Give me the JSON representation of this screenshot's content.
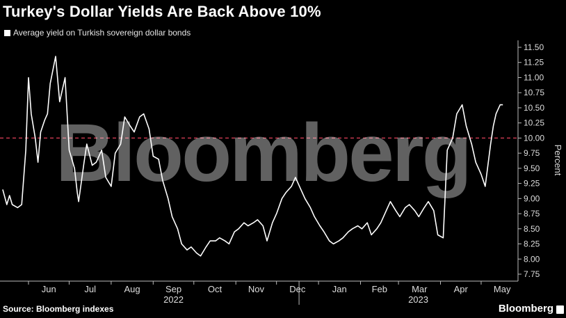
{
  "title": "Turkey's Dollar Yields Are Back Above 10%",
  "source": "Source: Bloomberg indexes",
  "brand": "Bloomberg",
  "watermark": "Bloomberg",
  "colors": {
    "background": "#000000",
    "line": "#ffffff",
    "reference": "#e0405a"
  },
  "chart_data": {
    "type": "line",
    "title": "Turkey's Dollar Yields Are Back Above 10%",
    "ylabel": "Percent",
    "ylim": [
      7.75,
      11.5
    ],
    "yticks": [
      "7.75",
      "8.00",
      "8.25",
      "8.50",
      "8.75",
      "9.00",
      "9.25",
      "9.50",
      "9.75",
      "10.00",
      "10.25",
      "10.50",
      "10.75",
      "11.00",
      "11.25",
      "11.50"
    ],
    "xticks": [
      "Jun",
      "Jul",
      "Aug",
      "Sep",
      "Oct",
      "Nov",
      "Dec",
      "Jan",
      "Feb",
      "Mar",
      "Apr",
      "May"
    ],
    "year_labels": [
      "2022",
      "2023"
    ],
    "reference_line": 10.0,
    "grid": false,
    "legend": "top-left",
    "series": [
      {
        "name": "Average yield on Turkish sovereign dollar bonds",
        "x": [
          "2022-05-13",
          "2022-05-16",
          "2022-05-18",
          "2022-05-20",
          "2022-05-24",
          "2022-05-27",
          "2022-05-30",
          "2022-06-01",
          "2022-06-03",
          "2022-06-06",
          "2022-06-08",
          "2022-06-10",
          "2022-06-13",
          "2022-06-15",
          "2022-06-17",
          "2022-06-21",
          "2022-06-24",
          "2022-06-28",
          "2022-07-01",
          "2022-07-05",
          "2022-07-07",
          "2022-07-08",
          "2022-07-12",
          "2022-07-14",
          "2022-07-18",
          "2022-07-21",
          "2022-07-25",
          "2022-07-28",
          "2022-08-01",
          "2022-08-04",
          "2022-08-08",
          "2022-08-11",
          "2022-08-15",
          "2022-08-18",
          "2022-08-22",
          "2022-08-25",
          "2022-08-29",
          "2022-09-01",
          "2022-09-05",
          "2022-09-08",
          "2022-09-12",
          "2022-09-15",
          "2022-09-19",
          "2022-09-22",
          "2022-09-26",
          "2022-09-29",
          "2022-10-03",
          "2022-10-06",
          "2022-10-10",
          "2022-10-13",
          "2022-10-17",
          "2022-10-20",
          "2022-10-24",
          "2022-10-27",
          "2022-10-31",
          "2022-11-03",
          "2022-11-07",
          "2022-11-10",
          "2022-11-14",
          "2022-11-17",
          "2022-11-21",
          "2022-11-24",
          "2022-11-28",
          "2022-12-01",
          "2022-12-05",
          "2022-12-08",
          "2022-12-12",
          "2022-12-15",
          "2022-12-19",
          "2022-12-22",
          "2022-12-26",
          "2022-12-29",
          "2023-01-02",
          "2023-01-05",
          "2023-01-09",
          "2023-01-12",
          "2023-01-16",
          "2023-01-19",
          "2023-01-23",
          "2023-01-26",
          "2023-01-30",
          "2023-02-02",
          "2023-02-06",
          "2023-02-09",
          "2023-02-13",
          "2023-02-16",
          "2023-02-20",
          "2023-02-23",
          "2023-02-27",
          "2023-03-02",
          "2023-03-06",
          "2023-03-09",
          "2023-03-13",
          "2023-03-16",
          "2023-03-20",
          "2023-03-23",
          "2023-03-27",
          "2023-03-30",
          "2023-04-03",
          "2023-04-06",
          "2023-04-10",
          "2023-04-13",
          "2023-04-17",
          "2023-04-20",
          "2023-04-24",
          "2023-04-27",
          "2023-05-01",
          "2023-05-04",
          "2023-05-08",
          "2023-05-10",
          "2023-05-12",
          "2023-05-15",
          "2023-05-17"
        ],
        "values": [
          9.15,
          8.9,
          9.05,
          8.9,
          8.85,
          8.9,
          9.8,
          11.0,
          10.4,
          10.0,
          9.6,
          10.1,
          10.3,
          10.4,
          10.9,
          11.35,
          10.6,
          11.0,
          9.8,
          9.5,
          9.1,
          8.95,
          9.6,
          9.9,
          9.55,
          9.6,
          9.8,
          9.35,
          9.2,
          9.75,
          9.9,
          10.35,
          10.2,
          10.1,
          10.35,
          10.4,
          10.15,
          9.7,
          9.65,
          9.3,
          9.0,
          8.7,
          8.5,
          8.25,
          8.15,
          8.2,
          8.1,
          8.05,
          8.2,
          8.3,
          8.3,
          8.35,
          8.3,
          8.25,
          8.45,
          8.5,
          8.6,
          8.55,
          8.6,
          8.65,
          8.55,
          8.3,
          8.6,
          8.75,
          9.0,
          9.1,
          9.2,
          9.35,
          9.15,
          9.0,
          8.85,
          8.7,
          8.55,
          8.45,
          8.3,
          8.25,
          8.3,
          8.35,
          8.45,
          8.5,
          8.55,
          8.5,
          8.6,
          8.4,
          8.5,
          8.6,
          8.8,
          8.95,
          8.8,
          8.7,
          8.85,
          8.9,
          8.8,
          8.7,
          8.85,
          8.95,
          8.8,
          8.4,
          8.35,
          9.8,
          10.0,
          10.4,
          10.55,
          10.2,
          9.9,
          9.6,
          9.4,
          9.2,
          9.9,
          10.2,
          10.4,
          10.55,
          10.55
        ]
      }
    ]
  }
}
